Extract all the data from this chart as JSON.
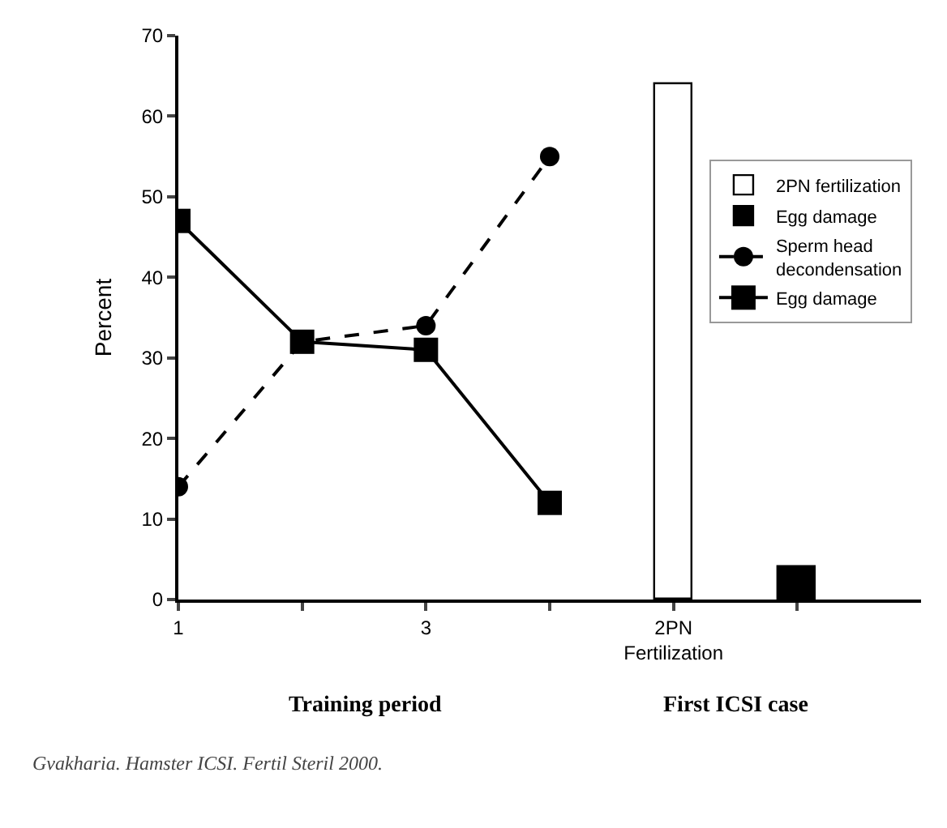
{
  "chart_data": {
    "type": "line",
    "ylabel": "Percent",
    "categories": [
      "1",
      null,
      "3",
      null,
      "2PN\nFertilization",
      null
    ],
    "ylim": [
      0,
      70
    ],
    "yticks": [
      0,
      10,
      20,
      30,
      40,
      50,
      60,
      70
    ],
    "legend": "right",
    "series": [
      {
        "name": "2PN fertilization",
        "type": "bar",
        "color": "#ffffff",
        "values": [
          null,
          null,
          null,
          null,
          64,
          null
        ]
      },
      {
        "name": "Egg damage",
        "type": "bar",
        "color": "#000000",
        "values": [
          null,
          null,
          null,
          null,
          null,
          4
        ]
      },
      {
        "name": "Sperm head decondensation",
        "color": "#000000",
        "marker": "circle",
        "line_style": "dashed",
        "values": [
          14,
          32,
          34,
          55,
          null,
          null
        ]
      },
      {
        "name": "Egg damage",
        "color": "#000000",
        "marker": "square",
        "line_style": "solid",
        "values": [
          47,
          32,
          31,
          12,
          null,
          null
        ]
      }
    ],
    "annotations": [
      "Training period",
      "First ICSI case",
      "Gvakharia. Hamster ICSI. Fertil Steril 2000."
    ]
  }
}
